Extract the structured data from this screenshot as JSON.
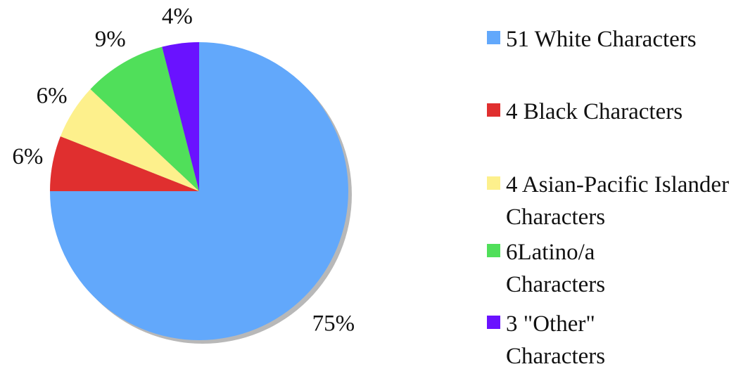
{
  "chart_data": {
    "type": "pie",
    "series": [
      {
        "name": "51 White Characters",
        "color": "#62a8fb",
        "values": [
          75
        ],
        "value_labels": [
          "75%"
        ]
      },
      {
        "name": "4 Black Characters",
        "color": "#e02f2f",
        "values": [
          6
        ],
        "value_labels": [
          "6%"
        ]
      },
      {
        "name": "4 Asian-Pacific Islander Characters",
        "color": "#fdf08c",
        "values": [
          6
        ],
        "value_labels": [
          "6%"
        ]
      },
      {
        "name": "6Latino/a Characters",
        "color": "#50df5a",
        "values": [
          9
        ],
        "value_labels": [
          "9%"
        ]
      },
      {
        "name": "3 \"Other\" Characters",
        "color": "#6a12ff",
        "values": [
          4
        ],
        "value_labels": [
          "4%"
        ]
      }
    ],
    "legend": "right"
  }
}
